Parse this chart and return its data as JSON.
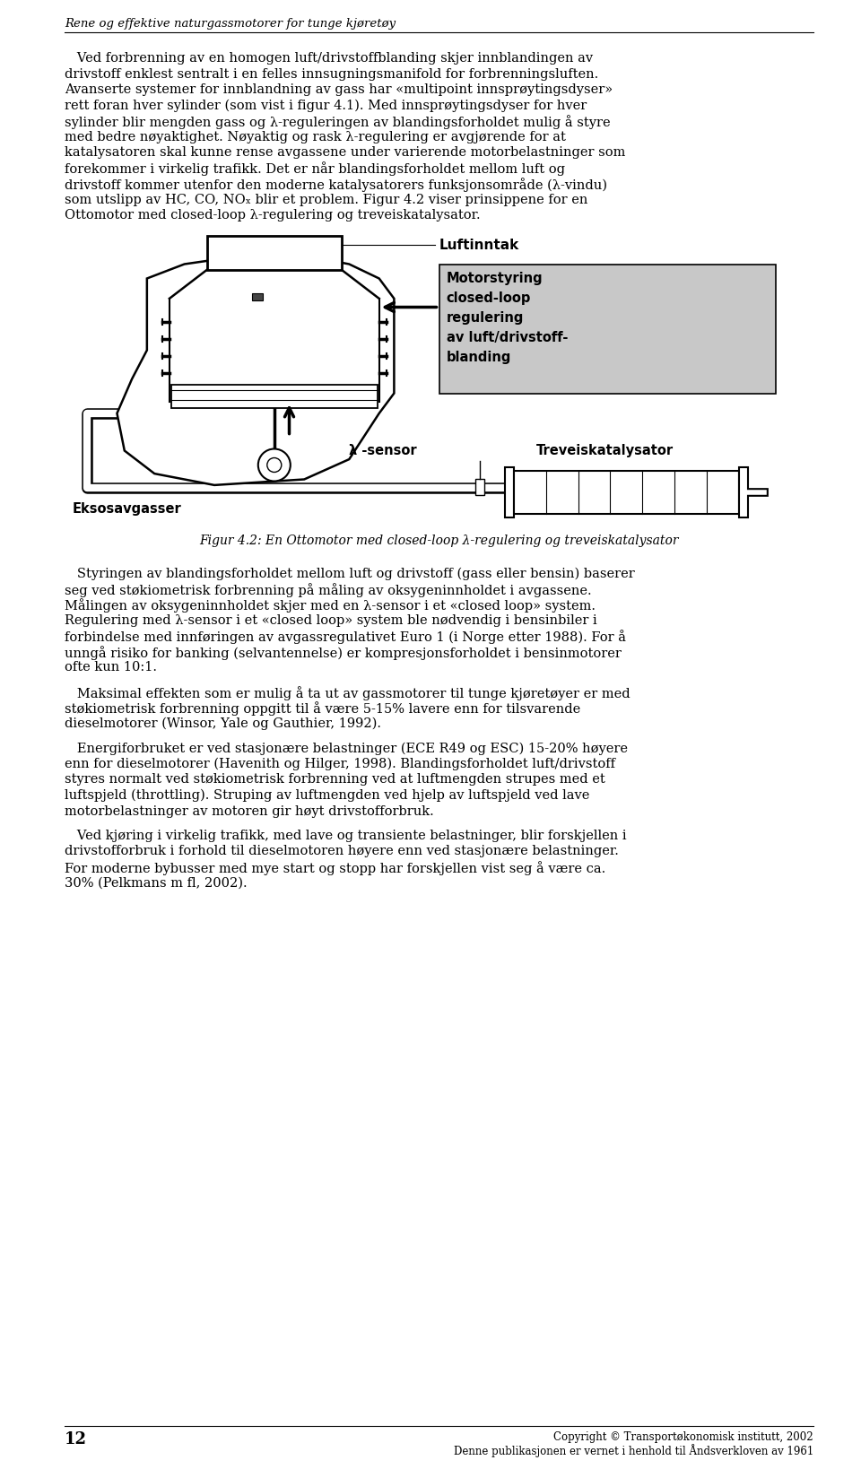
{
  "header_italic": "Rene og effektive naturgassmotorer for tunge kjøretøy",
  "page_number": "12",
  "footer_copyright": "Copyright © Transportøkonomisk institutt, 2002",
  "footer_law": "Denne publikasjonen er vernet i henhold til Åndsverkloven av 1961",
  "body_text": [
    "   Ved forbrenning av en homogen luft/drivstoffblanding skjer innblandingen av",
    "drivstoff enklest sentralt i en felles innsugningsmanifold for forbrenningsluften.",
    "Avanserte systemer for innblandning av gass har «multipoint innsprøytingsdyser»",
    "rett foran hver sylinder (som vist i figur 4.1). Med innsprøytingsdyser for hver",
    "sylinder blir mengden gass og λ-reguleringen av blandingsforholdet mulig å styre",
    "med bedre nøyaktighet. Nøyaktig og rask λ-regulering er avgjørende for at",
    "katalysatoren skal kunne rense avgassene under varierende motorbelastninger som",
    "forekommer i virkelig trafikk. Det er når blandingsforholdet mellom luft og",
    "drivstoff kommer utenfor den moderne katalysatorers funksjonsområde (λ-vindu)",
    "som utslipp av HC, CO, NOₓ blir et problem. Figur 4.2 viser prinsippene for en",
    "Ottomotor med closed-loop λ-regulering og treveiskatalysator."
  ],
  "body_text2": [
    "   Styringen av blandingsforholdet mellom luft og drivstoff (gass eller bensin) baserer",
    "seg ved støkiometrisk forbrenning på måling av oksygeninnholdet i avgassene.",
    "Målingen av oksygeninnholdet skjer med en λ-sensor i et «closed loop» system.",
    "Regulering med λ-sensor i et «closed loop» system ble nødvendig i bensinbiler i",
    "forbindelse med innføringen av avgassregulativet Euro 1 (i Norge etter 1988). For å",
    "unngå risiko for banking (selvantennelse) er kompresjonsforholdet i bensinmotorer",
    "ofte kun 10:1."
  ],
  "body_text3": [
    "   Maksimal effekten som er mulig å ta ut av gassmotorer til tunge kjøretøyer er med",
    "støkiometrisk forbrenning oppgitt til å være 5-15% lavere enn for tilsvarende",
    "dieselmotorer (Winsor, Yale og Gauthier, 1992)."
  ],
  "body_text4": [
    "   Energiforbruket er ved stasjonære belastninger (ECE R49 og ESC) 15-20% høyere",
    "enn for dieselmotorer (Havenith og Hilger, 1998). Blandingsforholdet luft/drivstoff",
    "styres normalt ved støkiometrisk forbrenning ved at luftmengden strupes med et",
    "luftspjeld (throttling). Struping av luftmengden ved hjelp av luftspjeld ved lave",
    "motorbelastninger av motoren gir høyt drivstofforbruk."
  ],
  "body_text5": [
    "   Ved kjøring i virkelig trafikk, med lave og transiente belastninger, blir forskjellen i",
    "drivstofforbruk i forhold til dieselmotoren høyere enn ved stasjonære belastninger.",
    "For moderne bybusser med mye start og stopp har forskjellen vist seg å være ca.",
    "30% (Pelkmans m fl, 2002)."
  ],
  "fig_caption": "Figur 4.2: En Ottomotor med closed-loop λ-regulering og treveiskatalysator",
  "label_luftinntak": "Luftinntak",
  "label_motorstyring": "Motorstyring\nclosed-loop\nregulering\nav luft/drivstoff-\nblanding",
  "label_lambda_sensor": "λ -sensor",
  "label_treveis": "Treveiskatalysator",
  "label_eksosavgasser": "Eksosavgasser",
  "bg_color": "#ffffff",
  "text_color": "#000000",
  "font_size_body": 10.5,
  "font_size_header": 9.5,
  "font_size_footer": 8.5,
  "font_size_fig_caption": 10.0,
  "font_size_page": 13
}
